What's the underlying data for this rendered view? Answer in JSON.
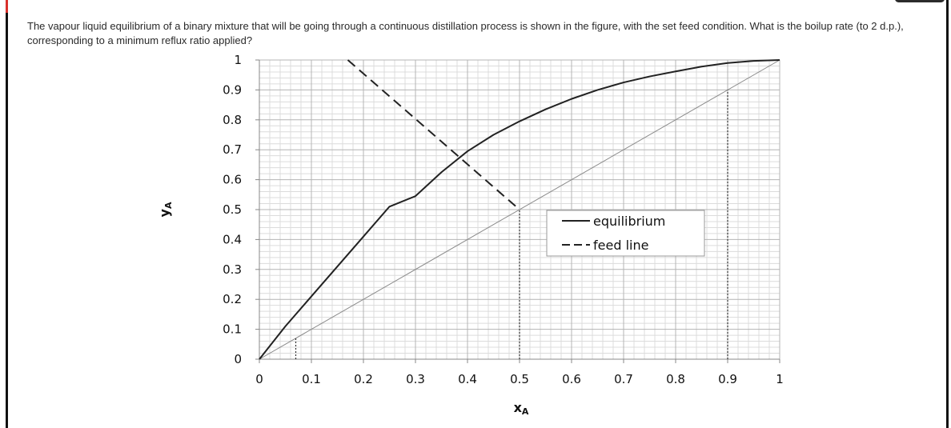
{
  "question": {
    "text": "The vapour liquid equilibrium of a binary mixture that will be going through a continuous distillation process is shown in the figure, with the set feed condition. What is the boilup rate (to 2 d.p.), corresponding to a minimum reflux ratio applied?"
  },
  "colors": {
    "accent": "#d9302b",
    "curve": "#222222",
    "diagonal": "#8a8a8a",
    "grid": "#c8c8c8"
  },
  "chart_data": {
    "type": "line",
    "title": "",
    "xlabel": "x",
    "xlabel_sub": "A",
    "ylabel": "y",
    "ylabel_sub": "A",
    "xlim": [
      0,
      1
    ],
    "ylim": [
      0,
      1
    ],
    "xticks": [
      "0",
      "0.1",
      "0.2",
      "0.3",
      "0.4",
      "0.5",
      "0.6",
      "0.7",
      "0.8",
      "0.9",
      "1"
    ],
    "yticks": [
      "0",
      "0.1",
      "0.2",
      "0.3",
      "0.4",
      "0.5",
      "0.6",
      "0.7",
      "0.8",
      "0.9",
      "1"
    ],
    "grid": true,
    "legend_position": "center-right",
    "series": [
      {
        "name": "equilibrium",
        "style": "solid",
        "x": [
          0,
          0.05,
          0.1,
          0.15,
          0.2,
          0.25,
          0.3,
          0.35,
          0.4,
          0.45,
          0.5,
          0.55,
          0.6,
          0.65,
          0.7,
          0.75,
          0.8,
          0.85,
          0.9,
          0.95,
          1.0
        ],
        "y": [
          0,
          0.11,
          0.21,
          0.31,
          0.41,
          0.51,
          0.545,
          0.625,
          0.695,
          0.75,
          0.795,
          0.835,
          0.87,
          0.9,
          0.925,
          0.945,
          0.962,
          0.978,
          0.99,
          0.997,
          1.0
        ]
      },
      {
        "name": "feed line",
        "style": "dashed",
        "x": [
          0.17,
          0.5
        ],
        "y": [
          1.0,
          0.5
        ]
      }
    ],
    "diagonal": {
      "x": [
        0,
        1
      ],
      "y": [
        0,
        1
      ]
    },
    "markers": {
      "x_distillate": 0.9,
      "x_feed": 0.5,
      "x_bottoms": 0.07
    }
  }
}
